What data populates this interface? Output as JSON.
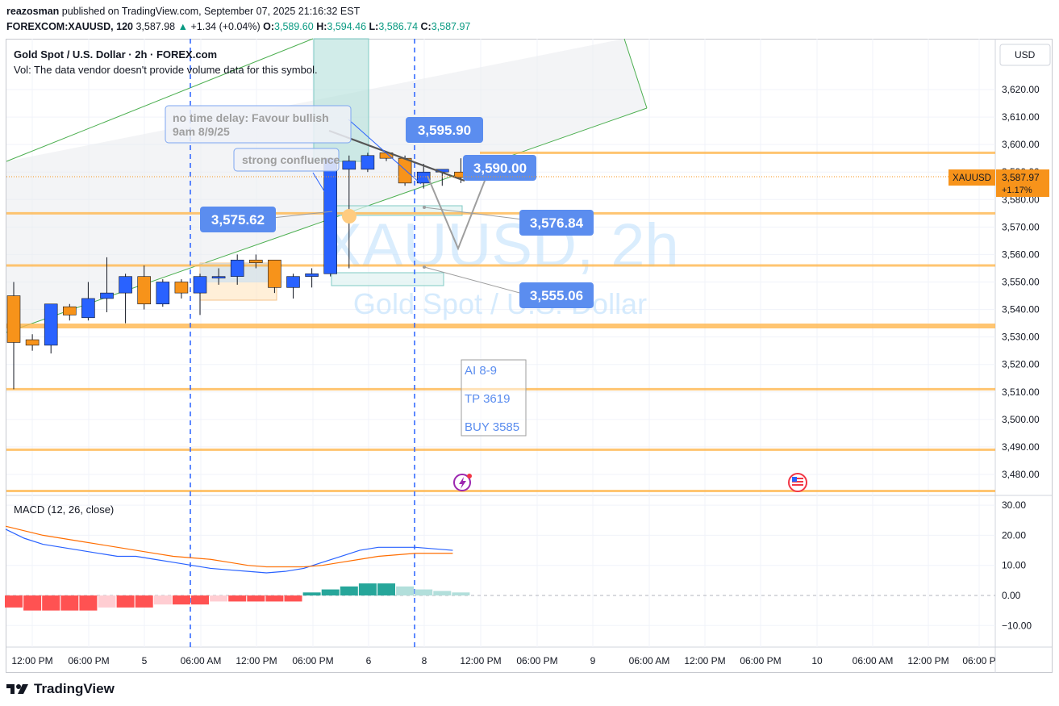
{
  "header": {
    "author": "reazosman",
    "published_text": " published on TradingView.com, September 07, 2025 21:16:32 EST",
    "symbol_line": "FOREXCOM:XAUUSD, 120",
    "last": "3,587.98",
    "change_arrow": "▲",
    "change": "+1.34 (+0.04%)",
    "o_label": "O:",
    "o": "3,589.60",
    "h_label": "H:",
    "h": "3,594.46",
    "l_label": "L:",
    "l": "3,586.74",
    "c_label": "C:",
    "c": "3,587.97"
  },
  "legend": {
    "title": "Gold Spot / U.S. Dollar · 2h · FOREX.com",
    "vol": "Vol: The data vendor doesn't provide volume data for this symbol.",
    "macd": "MACD (12, 26, close)"
  },
  "watermark": {
    "symbol": "XAUUSD, 2h",
    "name": "Gold Spot / U.S. Dollar"
  },
  "currency": "USD",
  "logo_text": "TradingView",
  "chart_data": {
    "type": "candlestick",
    "price_axis": {
      "ticks": [
        3620,
        3610,
        3600,
        3590,
        3580,
        3570,
        3560,
        3550,
        3540,
        3530,
        3520,
        3510,
        3500,
        3490,
        3480
      ],
      "tick_labels": [
        "3,620.00",
        "3,610.00",
        "3,600.00",
        "3,590.00",
        "3,580.00",
        "3,570.00",
        "3,560.00",
        "3,550.00",
        "3,540.00",
        "3,530.00",
        "3,520.00",
        "3,510.00",
        "3,500.00",
        "3,490.00",
        "3,480.00"
      ]
    },
    "time_axis": [
      "12:00 PM",
      "06:00 PM",
      "5",
      "06:00 AM",
      "12:00 PM",
      "06:00 PM",
      "6",
      "8",
      "12:00 PM",
      "06:00 PM",
      "9",
      "06:00 AM",
      "12:00 PM",
      "06:00 PM",
      "10",
      "06:00 AM",
      "12:00 PM",
      "06:00 P"
    ],
    "candles": [
      {
        "o": 3545,
        "h": 3550,
        "l": 3511,
        "c": 3528
      },
      {
        "o": 3529,
        "h": 3531,
        "l": 3525,
        "c": 3527
      },
      {
        "o": 3527,
        "h": 3542,
        "l": 3524,
        "c": 3542
      },
      {
        "o": 3541,
        "h": 3542,
        "l": 3536,
        "c": 3538
      },
      {
        "o": 3537,
        "h": 3550,
        "l": 3536,
        "c": 3544
      },
      {
        "o": 3544,
        "h": 3559,
        "l": 3539,
        "c": 3546
      },
      {
        "o": 3546,
        "h": 3553,
        "l": 3535,
        "c": 3552
      },
      {
        "o": 3552,
        "h": 3556,
        "l": 3540,
        "c": 3542
      },
      {
        "o": 3542,
        "h": 3551,
        "l": 3541,
        "c": 3550
      },
      {
        "o": 3550,
        "h": 3551,
        "l": 3544,
        "c": 3546
      },
      {
        "o": 3546,
        "h": 3553,
        "l": 3538,
        "c": 3552
      },
      {
        "o": 3552,
        "h": 3555,
        "l": 3549,
        "c": 3552
      },
      {
        "o": 3552,
        "h": 3560,
        "l": 3549,
        "c": 3558
      },
      {
        "o": 3558,
        "h": 3560,
        "l": 3555,
        "c": 3557
      },
      {
        "o": 3558,
        "h": 3558,
        "l": 3546,
        "c": 3548
      },
      {
        "o": 3548,
        "h": 3553,
        "l": 3544,
        "c": 3552
      },
      {
        "o": 3552,
        "h": 3555,
        "l": 3548,
        "c": 3553
      },
      {
        "o": 3553,
        "h": 3595,
        "l": 3552,
        "c": 3595
      },
      {
        "o": 3591,
        "h": 3596,
        "l": 3555,
        "c": 3594
      },
      {
        "o": 3591,
        "h": 3597,
        "l": 3590,
        "c": 3596
      },
      {
        "o": 3597,
        "h": 3597,
        "l": 3594,
        "c": 3595
      },
      {
        "o": 3595,
        "h": 3596,
        "l": 3585,
        "c": 3586
      },
      {
        "o": 3586,
        "h": 3593,
        "l": 3584,
        "c": 3590
      },
      {
        "o": 3590,
        "h": 3591,
        "l": 3585,
        "c": 3591
      },
      {
        "o": 3590,
        "h": 3595,
        "l": 3586,
        "c": 3588
      }
    ],
    "last_price_label": "XAUUSD",
    "last_price": "3,587.97",
    "last_change": "+1.17%",
    "horizontal_levels": [
      3597,
      3575,
      3556,
      3534,
      3511,
      3489,
      3474
    ],
    "price_callouts": [
      {
        "label": "3,595.90",
        "value": 3595.9
      },
      {
        "label": "3,590.00",
        "value": 3590.0
      },
      {
        "label": "3,575.62",
        "value": 3575.62
      },
      {
        "label": "3,576.84",
        "value": 3576.84
      },
      {
        "label": "3,555.06",
        "value": 3555.06
      }
    ],
    "notes": {
      "note1_line1": "no time delay: Favour bullish",
      "note1_line2": "9am 8/9/25",
      "note2": "strong confluence",
      "box_line1": "AI 8-9",
      "box_line2": "TP 3619",
      "box_line3": "BUY 3585"
    },
    "macd": {
      "axis_ticks": [
        30,
        20,
        10,
        0,
        -10
      ],
      "axis_labels": [
        "30.00",
        "20.00",
        "10.00",
        "0.00",
        "−10.00"
      ],
      "macd_line": [
        22,
        19,
        17,
        16,
        15,
        14,
        13,
        13,
        12,
        11,
        10,
        9,
        8.5,
        8,
        7.5,
        8,
        9,
        11,
        13,
        15,
        16,
        16,
        16,
        15.5,
        15
      ],
      "signal_line": [
        23,
        21.5,
        20,
        19,
        18,
        17,
        16,
        15,
        14,
        13,
        12.5,
        12,
        11,
        10,
        9.5,
        9.5,
        9.5,
        10,
        11,
        12,
        13,
        13.5,
        14,
        14,
        14
      ],
      "histogram": [
        -4,
        -5,
        -5,
        -5,
        -5,
        -4,
        -4,
        -4,
        -3,
        -3,
        -3,
        -2,
        -2,
        -2,
        -2,
        -2,
        1,
        2,
        3,
        4,
        4,
        3,
        2,
        1.5,
        1
      ]
    }
  }
}
